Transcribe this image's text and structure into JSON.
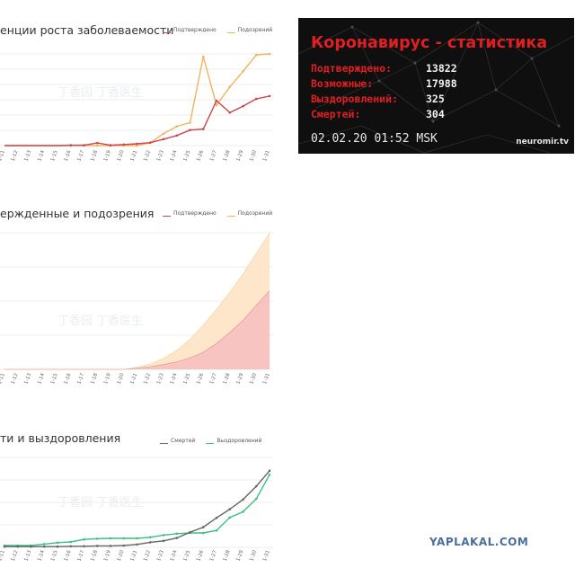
{
  "x_labels": [
    "1-11",
    "1-12",
    "1-13",
    "1-14",
    "1-15",
    "1-16",
    "1-17",
    "1-18",
    "1-19",
    "1-20",
    "1-21",
    "1-22",
    "1-23",
    "1-24",
    "1-25",
    "1-26",
    "1-27",
    "1-28",
    "1-29",
    "1-30",
    "1-31"
  ],
  "watermark": "丁香园 丁香医生",
  "colors": {
    "confirmed": "#c9464e",
    "suspected": "#f2b35c",
    "deaths": "#666666",
    "recovered": "#3cbf80",
    "grid": "#e6e6e6",
    "text_red": "#e02020"
  },
  "chart_data": [
    {
      "type": "line",
      "title": "енции роста заболеваемости",
      "x": [
        "1-11",
        "1-12",
        "1-13",
        "1-14",
        "1-15",
        "1-16",
        "1-17",
        "1-18",
        "1-19",
        "1-20",
        "1-21",
        "1-22",
        "1-23",
        "1-24",
        "1-25",
        "1-26",
        "1-27",
        "1-28",
        "1-29",
        "1-30",
        "1-31"
      ],
      "ylim": [
        0,
        5000
      ],
      "grid": true,
      "legend_position": "top-right",
      "series": [
        {
          "name": "Подтверждено",
          "values": [
            0,
            0,
            0,
            0,
            0,
            20,
            20,
            140,
            20,
            60,
            100,
            160,
            350,
            550,
            850,
            900,
            2450,
            1800,
            2150,
            2550,
            2700
          ]
        },
        {
          "name": "Подозрений",
          "values": [
            0,
            0,
            0,
            0,
            0,
            0,
            0,
            0,
            0,
            0,
            0,
            150,
            650,
            1050,
            1250,
            4850,
            2200,
            3200,
            4050,
            4950,
            5000
          ]
        }
      ]
    },
    {
      "type": "area",
      "title": "ержденные и подозрения",
      "x": [
        "1-11",
        "1-12",
        "1-13",
        "1-14",
        "1-15",
        "1-16",
        "1-17",
        "1-18",
        "1-19",
        "1-20",
        "1-21",
        "1-22",
        "1-23",
        "1-24",
        "1-25",
        "1-26",
        "1-27",
        "1-28",
        "1-29",
        "1-30",
        "1-31"
      ],
      "ylim": [
        0,
        20000
      ],
      "grid": true,
      "legend_position": "top-right",
      "series": [
        {
          "name": "Подтверждено",
          "values": [
            0,
            0,
            0,
            0,
            0,
            0,
            0,
            0,
            0,
            0,
            200,
            400,
            700,
            1100,
            1700,
            2500,
            3800,
            5400,
            7200,
            9400,
            11500
          ]
        },
        {
          "name": "Подозрений",
          "values": [
            0,
            0,
            0,
            0,
            0,
            0,
            0,
            0,
            0,
            0,
            300,
            800,
            1600,
            2800,
            4400,
            6500,
            8800,
            11300,
            14000,
            17000,
            20000
          ]
        }
      ]
    },
    {
      "type": "line",
      "title": "ти и выздоровления",
      "x": [
        "1-11",
        "1-12",
        "1-13",
        "1-14",
        "1-15",
        "1-16",
        "1-17",
        "1-18",
        "1-19",
        "1-20",
        "1-21",
        "1-22",
        "1-23",
        "1-24",
        "1-25",
        "1-26",
        "1-27",
        "1-28",
        "1-29",
        "1-30",
        "1-31"
      ],
      "ylim": [
        0,
        250
      ],
      "grid": true,
      "legend_position": "top-right",
      "series": [
        {
          "name": "Смертей",
          "values": [
            2,
            2,
            2,
            2,
            2,
            3,
            3,
            4,
            4,
            5,
            8,
            14,
            18,
            26,
            42,
            56,
            82,
            106,
            133,
            170,
            213
          ]
        },
        {
          "name": "Выздоровлений",
          "values": [
            5,
            5,
            5,
            9,
            13,
            15,
            22,
            24,
            25,
            25,
            25,
            28,
            34,
            38,
            40,
            40,
            47,
            83,
            99,
            135,
            202
          ]
        }
      ]
    }
  ],
  "stats": {
    "title": "Коронавирус - статистика",
    "rows": [
      {
        "label": "Подтверждено:",
        "value": "13822"
      },
      {
        "label": "Возможные:",
        "value": "17988"
      },
      {
        "label": "Выздоровлений:",
        "value": "325"
      },
      {
        "label": "Смертей:",
        "value": "304"
      }
    ],
    "datetime": "02.02.20 01:52 MSK",
    "site": "neuromir.tv"
  },
  "footer_watermark": "YAPLAKAL.COM"
}
